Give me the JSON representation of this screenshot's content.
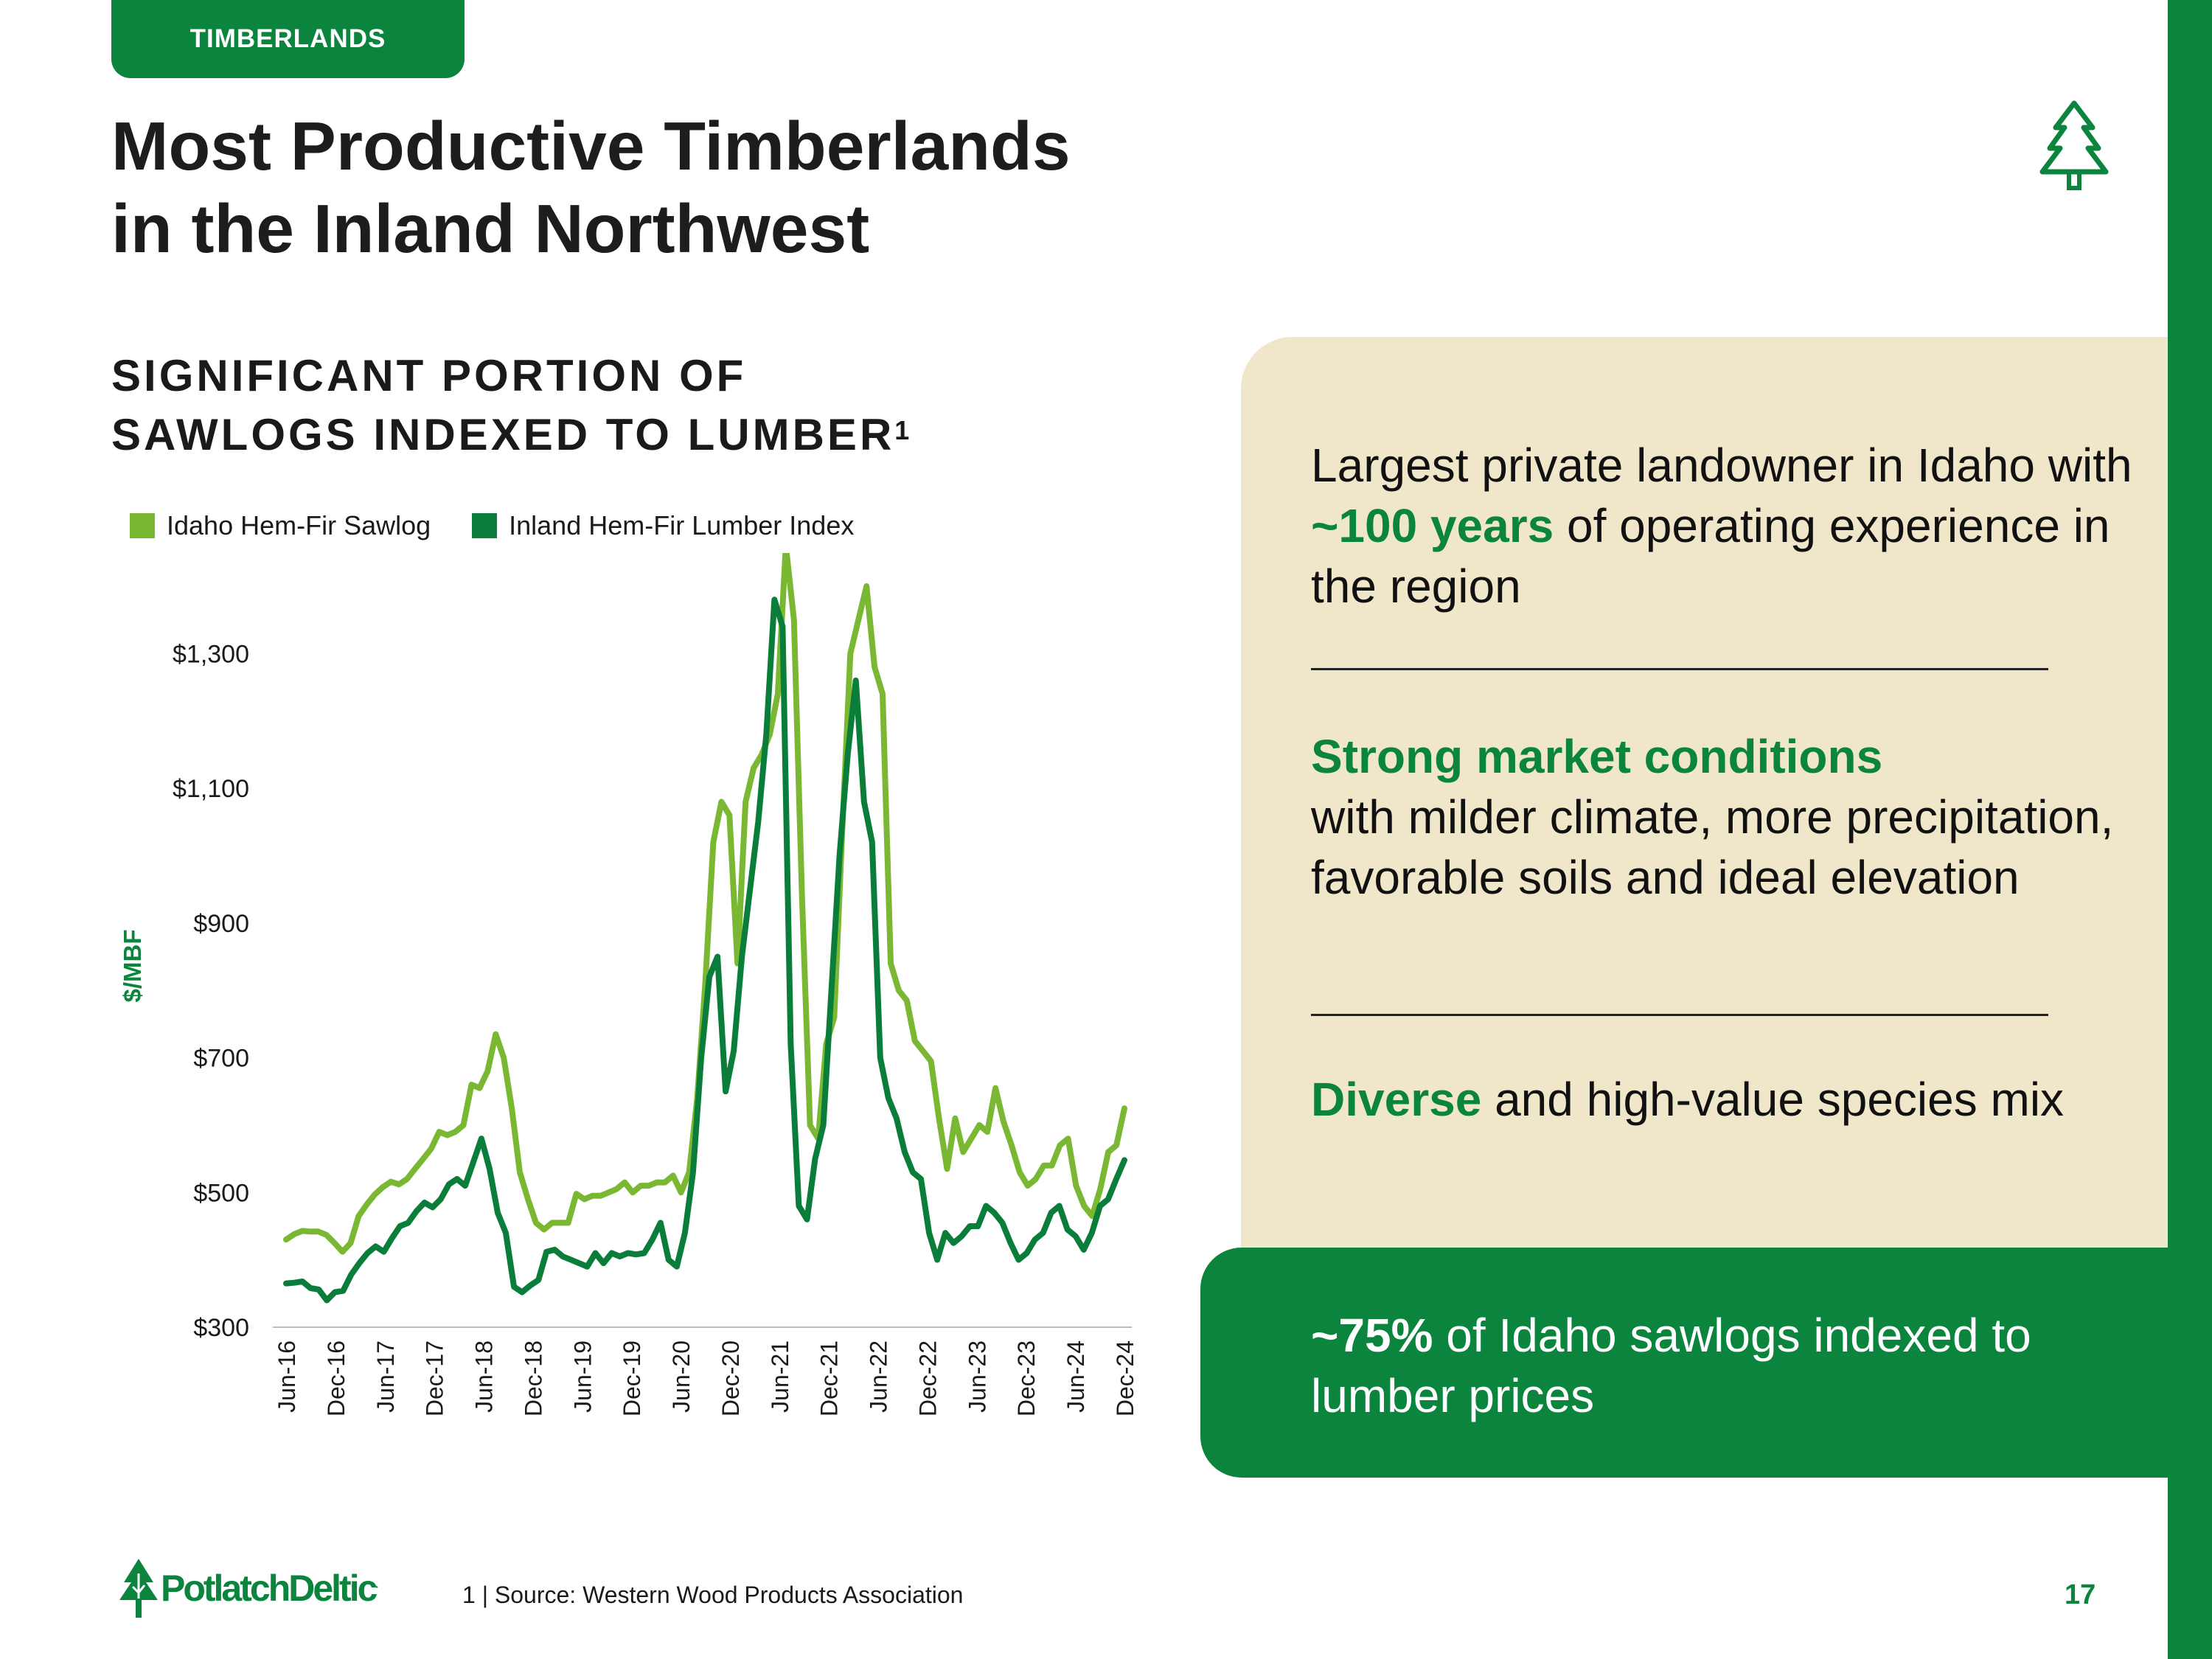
{
  "section_tag": "TIMBERLANDS",
  "title_line1": "Most Productive Timberlands",
  "title_line2": "in the Inland Northwest",
  "subtitle_line1": "SIGNIFICANT PORTION OF",
  "subtitle_line2": "SAWLOGS INDEXED TO LUMBER",
  "subtitle_footnote_mark": "1",
  "chart_data": {
    "type": "line",
    "title": "SIGNIFICANT PORTION OF SAWLOGS INDEXED TO LUMBER",
    "ylabel": "$/MBF",
    "xlabel": "",
    "ylim": [
      300,
      1400
    ],
    "yticks": [
      300,
      500,
      700,
      900,
      1100,
      1300
    ],
    "ytick_labels": [
      "$300",
      "$500",
      "$700",
      "$900",
      "$1,100",
      "$1,300"
    ],
    "xtick_labels": [
      "Jun-16",
      "Dec-16",
      "Jun-17",
      "Dec-17",
      "Jun-18",
      "Dec-18",
      "Jun-19",
      "Dec-19",
      "Jun-20",
      "Dec-20",
      "Jun-21",
      "Dec-21",
      "Jun-22",
      "Dec-22",
      "Jun-23",
      "Dec-23",
      "Jun-24",
      "Dec-24"
    ],
    "legend_position": "top-left",
    "series": [
      {
        "name": "Idaho Hem-Fir Sawlog",
        "color": "#7ab833",
        "values": [
          430,
          438,
          443,
          442,
          442,
          437,
          425,
          412,
          425,
          465,
          482,
          497,
          508,
          516,
          512,
          520,
          535,
          550,
          565,
          590,
          585,
          590,
          600,
          660,
          655,
          680,
          735,
          700,
          625,
          530,
          490,
          455,
          445,
          455,
          455,
          455,
          498,
          490,
          495,
          495,
          500,
          505,
          515,
          500,
          510,
          510,
          515,
          515,
          525,
          500,
          530,
          640,
          810,
          1020,
          1080,
          1060,
          840,
          1080,
          1130,
          1150,
          1180,
          1240,
          1460,
          1350,
          940,
          600,
          580,
          720,
          760,
          1040,
          1300,
          1350,
          1400,
          1280,
          1240,
          840,
          800,
          785,
          725,
          710,
          695,
          610,
          535,
          610,
          560,
          580,
          600,
          590,
          655,
          605,
          570,
          530,
          510,
          520,
          540,
          540,
          570,
          580,
          510,
          480,
          465,
          505,
          560,
          570,
          625
        ],
        "value_precision": "approximate, read from chart"
      },
      {
        "name": "Inland Hem-Fir Lumber Index",
        "color": "#0b7d3a",
        "values": [
          365,
          366,
          368,
          358,
          356,
          340,
          352,
          354,
          378,
          395,
          410,
          420,
          412,
          432,
          450,
          455,
          472,
          485,
          478,
          490,
          512,
          520,
          510,
          545,
          580,
          535,
          470,
          440,
          360,
          352,
          362,
          370,
          412,
          415,
          405,
          400,
          395,
          390,
          410,
          395,
          410,
          405,
          410,
          408,
          410,
          430,
          455,
          400,
          390,
          440,
          530,
          700,
          820,
          850,
          650,
          710,
          850,
          950,
          1050,
          1180,
          1380,
          1340,
          720,
          480,
          460,
          550,
          600,
          800,
          1000,
          1150,
          1260,
          1080,
          1020,
          700,
          640,
          610,
          560,
          530,
          520,
          440,
          400,
          440,
          425,
          435,
          450,
          450,
          480,
          470,
          455,
          425,
          400,
          410,
          430,
          440,
          470,
          480,
          445,
          435,
          415,
          440,
          480,
          490,
          520,
          548
        ],
        "value_precision": "approximate, read from chart"
      }
    ]
  },
  "right_panel": {
    "point1_pre": "Largest private landowner in Idaho with ",
    "point1_highlight": "~100 years",
    "point1_post": " of operating experience in the region",
    "point2_highlight": "Strong market conditions",
    "point2_post": "with milder climate, more precipitation, favorable soils and ideal elevation",
    "point3_highlight": "Diverse",
    "point3_post": " and high-value species mix",
    "point4_highlight": "~75%",
    "point4_post": " of Idaho sawlogs indexed to lumber prices"
  },
  "footer": {
    "logo_text": "PotlatchDeltic",
    "logo_mark": ".",
    "footnote": "1 | Source: Western Wood Products Association",
    "page_number": "17"
  },
  "colors": {
    "brand_green": "#0b843d",
    "light_green": "#7ab833",
    "beige": "#f0e6c9"
  }
}
